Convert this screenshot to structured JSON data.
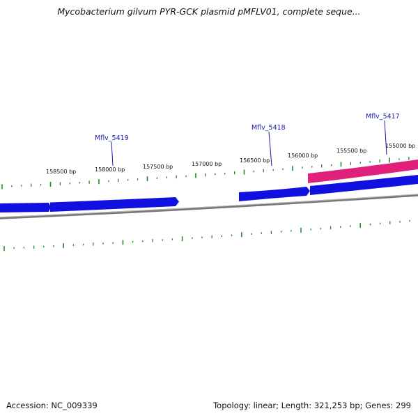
{
  "title": "Mycobacterium gilvum PYR-GCK plasmid pMFLV01, complete seque...",
  "footer": {
    "accession": "Accession: NC_009339",
    "stats": "Topology: linear; Length: 321,253 bp; Genes: 299"
  },
  "ruler_labels": [
    "158500 bp",
    "158000 bp",
    "157500 bp",
    "157000 bp",
    "156500 bp",
    "156000 bp",
    "155500 bp",
    "155000 bp"
  ],
  "gene_labels": [
    "Mflv_5419",
    "Mflv_5418",
    "Mflv_5417"
  ],
  "colors": {
    "forward_gene": "#1010e0",
    "reverse_gene": "#e0207a",
    "tick": "#228b22",
    "backbone": "#808080",
    "label": "#1a1aa8"
  }
}
